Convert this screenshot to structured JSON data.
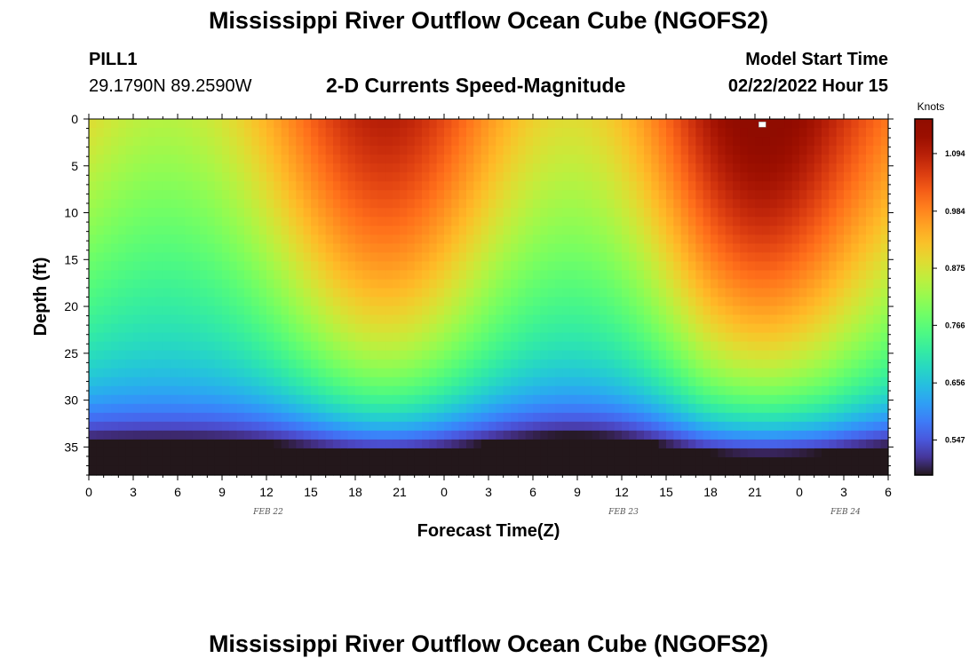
{
  "header": {
    "title": "Mississippi River Outflow Ocean Cube (NGOFS2)",
    "station": "PILL1",
    "coords": "29.1790N  89.2590W",
    "subtitle": "2-D Currents Speed-Magnitude",
    "model_start_label": "Model Start Time",
    "model_start_value": "02/22/2022 Hour 15"
  },
  "footer": {
    "title_repeat": "Mississippi River Outflow Ocean Cube (NGOFS2)"
  },
  "chart_data": {
    "type": "heatmap",
    "title": "2-D Currents Speed-Magnitude",
    "xlabel": "Forecast Time(Z)",
    "ylabel": "Depth (ft)",
    "colorbar_label": "Knots",
    "x_range_hours": [
      0,
      54
    ],
    "y_range_ft": [
      0,
      38
    ],
    "x_tick_labels": [
      "0",
      "3",
      "6",
      "9",
      "12",
      "15",
      "18",
      "21",
      "0",
      "3",
      "6",
      "9",
      "12",
      "15",
      "18",
      "21",
      "0",
      "3",
      "6"
    ],
    "y_ticks": [
      0,
      5,
      10,
      15,
      20,
      25,
      30,
      35
    ],
    "date_labels": [
      {
        "label": "FEB 22",
        "hour": 12
      },
      {
        "label": "FEB 23",
        "hour": 36
      },
      {
        "label": "FEB 24",
        "hour": 51
      }
    ],
    "colorbar_ticks": [
      "0.547",
      "0.656",
      "0.766",
      "0.875",
      "0.984",
      "1.094"
    ],
    "colorbar_range": [
      0.48,
      1.16
    ],
    "colormap": "turbo",
    "surface_speed_peaks": [
      {
        "hour": 20,
        "speed": 1.05
      },
      {
        "hour": 45,
        "speed": 1.12
      }
    ],
    "surface_speed_troughs": [
      {
        "hour": 7,
        "speed": 0.8
      },
      {
        "hour": 32,
        "speed": 0.78
      }
    ],
    "bottom_speed_min": {
      "hour": 33,
      "speed": 0.49
    },
    "marker": {
      "hour": 45.5,
      "depth_ft": 0.3
    }
  }
}
